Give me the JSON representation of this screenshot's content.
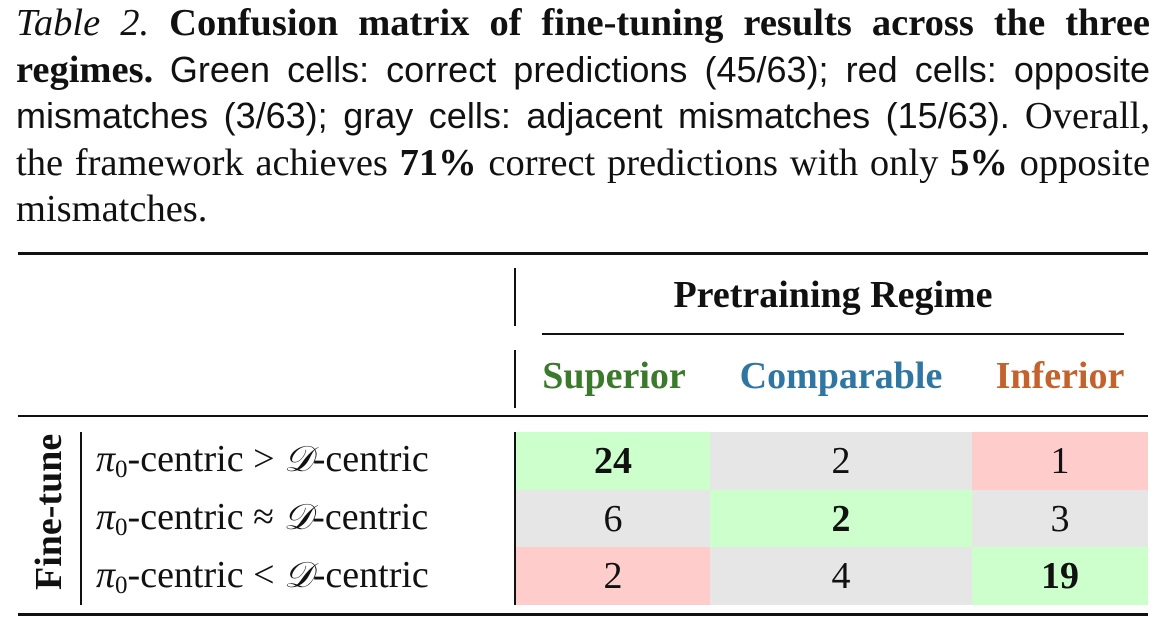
{
  "caption": {
    "label": "Table 2.",
    "title": "Confusion matrix of fine-tuning results across the three regimes.",
    "part1": "Green cells: correct predictions (45/63); red cells: opposite mismatches (3/63); gray cells: adjacent mismatches (15/63).",
    "part2": "Overall, the framework achieves",
    "pct_correct": "71%",
    "part3": "correct predictions with only",
    "pct_opposite": "5%",
    "part4": "opposite mismatches."
  },
  "table": {
    "group_header": "Pretraining Regime",
    "row_group_label": "Fine-tune",
    "columns": [
      {
        "label": "Superior",
        "color": "#3a7a2a"
      },
      {
        "label": "Comparable",
        "color": "#2f76a3"
      },
      {
        "label": "Inferior",
        "color": "#c4622d"
      }
    ],
    "rows": [
      {
        "pi": "π",
        "sub": "0",
        "mid": "-centric",
        "op": ">",
        "D": "𝒟",
        "tail": "-centric"
      },
      {
        "pi": "π",
        "sub": "0",
        "mid": "-centric",
        "op": "≈",
        "D": "𝒟",
        "tail": "-centric"
      },
      {
        "pi": "π",
        "sub": "0",
        "mid": "-centric",
        "op": "<",
        "D": "𝒟",
        "tail": "-centric"
      }
    ],
    "cells": [
      [
        {
          "value": "24",
          "kind": "correct",
          "bold": true
        },
        {
          "value": "2",
          "kind": "adjacent",
          "bold": false
        },
        {
          "value": "1",
          "kind": "opposite",
          "bold": false
        }
      ],
      [
        {
          "value": "6",
          "kind": "adjacent",
          "bold": false
        },
        {
          "value": "2",
          "kind": "correct",
          "bold": true
        },
        {
          "value": "3",
          "kind": "adjacent",
          "bold": false
        }
      ],
      [
        {
          "value": "2",
          "kind": "opposite",
          "bold": false
        },
        {
          "value": "4",
          "kind": "adjacent",
          "bold": false
        },
        {
          "value": "19",
          "kind": "correct",
          "bold": true
        }
      ]
    ],
    "colors": {
      "correct": "#ccffcc",
      "opposite": "#ffcccc",
      "adjacent": "#e6e6e6"
    }
  }
}
